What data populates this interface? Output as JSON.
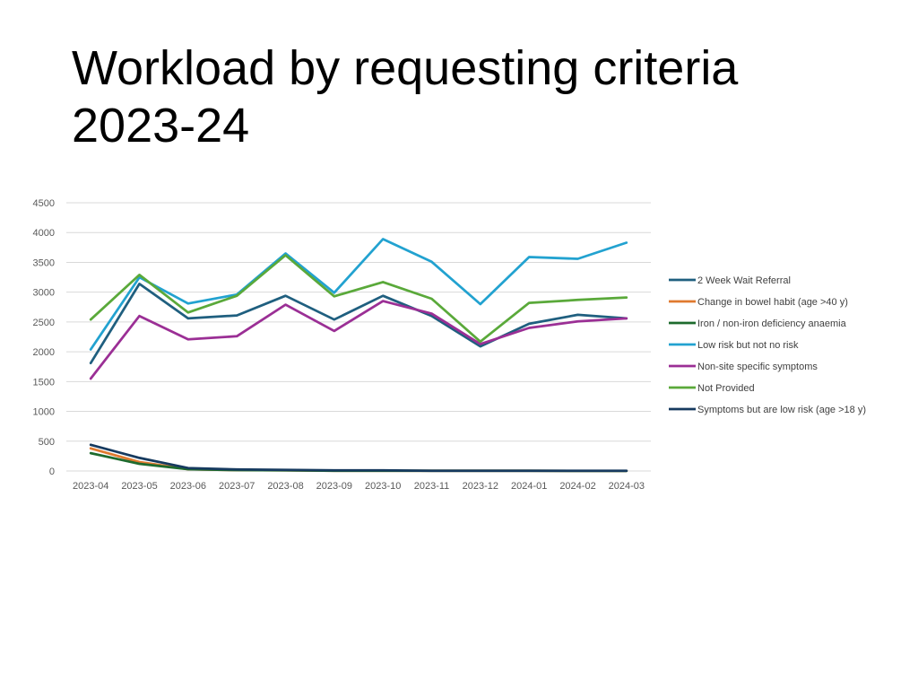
{
  "slide": {
    "title_line1": "Workload by requesting criteria",
    "title_line2": "2023-24"
  },
  "chart_data": {
    "type": "line",
    "title": "",
    "xlabel": "",
    "ylabel": "",
    "ylim": [
      0,
      4500
    ],
    "yticks": [
      0,
      500,
      1000,
      1500,
      2000,
      2500,
      3000,
      3500,
      4000,
      4500
    ],
    "grid": true,
    "legend_position": "right",
    "categories": [
      "2023-04",
      "2023-05",
      "2023-06",
      "2023-07",
      "2023-08",
      "2023-09",
      "2023-10",
      "2023-11",
      "2023-12",
      "2024-01",
      "2024-02",
      "2024-03"
    ],
    "series": [
      {
        "name": "2 Week Wait Referral",
        "color": "#1f5f7f",
        "values": [
          1810,
          3140,
          2560,
          2610,
          2940,
          2540,
          2940,
          2600,
          2090,
          2470,
          2620,
          2560
        ]
      },
      {
        "name": "Change in bowel habit (age >40 y)",
        "color": "#e07a2f",
        "values": [
          380,
          150,
          30,
          15,
          10,
          5,
          5,
          3,
          3,
          3,
          2,
          2
        ]
      },
      {
        "name": "Iron / non-iron deficiency anaemia",
        "color": "#1e6b2e",
        "values": [
          300,
          120,
          30,
          15,
          10,
          5,
          5,
          3,
          3,
          3,
          2,
          2
        ]
      },
      {
        "name": "Low risk but not no risk",
        "color": "#22a2d0",
        "values": [
          2040,
          3250,
          2810,
          2960,
          3650,
          2990,
          3890,
          3510,
          2800,
          3590,
          3560,
          3830
        ]
      },
      {
        "name": "Non-site specific symptoms",
        "color": "#9b2f95",
        "values": [
          1550,
          2600,
          2210,
          2260,
          2790,
          2350,
          2850,
          2640,
          2130,
          2400,
          2510,
          2560
        ]
      },
      {
        "name": "Not Provided",
        "color": "#5aa93a",
        "values": [
          2540,
          3290,
          2660,
          2940,
          3620,
          2930,
          3170,
          2890,
          2170,
          2820,
          2870,
          2910
        ]
      },
      {
        "name": "Symptoms but are low risk (age >18 y)",
        "color": "#163a5f",
        "values": [
          440,
          220,
          50,
          25,
          20,
          10,
          10,
          5,
          5,
          5,
          5,
          5
        ]
      }
    ]
  }
}
